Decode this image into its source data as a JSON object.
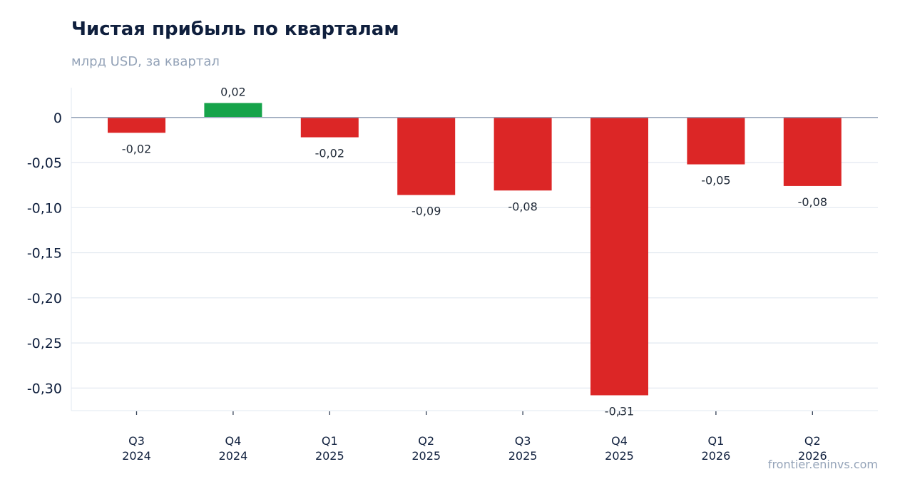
{
  "header": {
    "title": "Чистая прибыль по кварталам",
    "subtitle": "млрд USD, за квартал"
  },
  "footer": {
    "source": "frontier.eninvs.com"
  },
  "colors": {
    "positive": "#16a34a",
    "negative": "#dc2626",
    "grid": "#e2e8f0",
    "zero_line": "#94a3b8",
    "axis_text": "#0f1f3d"
  },
  "chart_data": {
    "type": "bar",
    "title": "Чистая прибыль по кварталам",
    "subtitle": "млрд USD, за квартал",
    "xlabel": "",
    "ylabel": "",
    "categories": [
      [
        "Q3",
        "2024"
      ],
      [
        "Q4",
        "2024"
      ],
      [
        "Q1",
        "2025"
      ],
      [
        "Q2",
        "2025"
      ],
      [
        "Q3",
        "2025"
      ],
      [
        "Q4",
        "2025"
      ],
      [
        "Q1",
        "2026"
      ],
      [
        "Q2",
        "2026"
      ]
    ],
    "values": [
      -0.017,
      0.016,
      -0.022,
      -0.086,
      -0.081,
      -0.308,
      -0.052,
      -0.076
    ],
    "data_labels": [
      "-0,02",
      "0,02",
      "-0,02",
      "-0,09",
      "-0,08",
      "-0,31",
      "-0,05",
      "-0,08"
    ],
    "yticks": [
      0,
      -0.05,
      -0.1,
      -0.15,
      -0.2,
      -0.25,
      -0.3
    ],
    "ytick_labels": [
      "0",
      "-0,05",
      "-0,10",
      "-0,15",
      "-0,20",
      "-0,25",
      "-0,30"
    ],
    "ylim": [
      -0.325,
      0.033
    ],
    "grid": true,
    "legend": "none"
  }
}
